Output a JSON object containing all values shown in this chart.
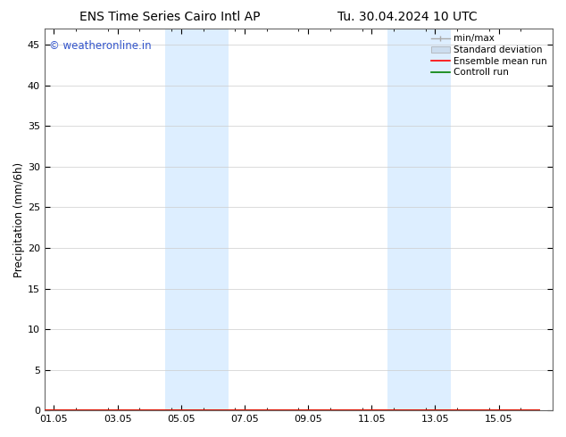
{
  "title_left": "ENS Time Series Cairo Intl AP",
  "title_right": "Tu. 30.04.2024 10 UTC",
  "ylabel": "Precipitation (mm/6h)",
  "ylim": [
    0,
    47
  ],
  "yticks": [
    0,
    5,
    10,
    15,
    20,
    25,
    30,
    35,
    40,
    45
  ],
  "xtick_labels": [
    "01.05",
    "03.05",
    "05.05",
    "07.05",
    "09.05",
    "11.05",
    "13.05",
    "15.05"
  ],
  "xtick_positions": [
    0,
    2,
    4,
    6,
    8,
    10,
    12,
    14
  ],
  "xmin": -0.3,
  "xmax": 15.3,
  "shaded_regions": [
    {
      "xstart": 3.5,
      "xend": 5.5
    },
    {
      "xstart": 10.5,
      "xend": 12.5
    }
  ],
  "shaded_color": "#ddeeff",
  "bg_color": "#ffffff",
  "plot_bg_color": "#ffffff",
  "watermark_text": "© weatheronline.in",
  "watermark_color": "#3355cc",
  "legend_items": [
    {
      "label": "min/max",
      "color": "#aaaaaa",
      "lw": 1.0
    },
    {
      "label": "Standard deviation",
      "color": "#ccddef",
      "lw": 5
    },
    {
      "label": "Ensemble mean run",
      "color": "#ff0000",
      "lw": 1.2
    },
    {
      "label": "Controll run",
      "color": "#008000",
      "lw": 1.2
    }
  ],
  "grid_color": "#cccccc",
  "tick_color": "#000000",
  "font_size_title": 10,
  "font_size_tick": 8,
  "font_size_legend": 7.5,
  "font_size_ylabel": 8.5,
  "font_size_watermark": 8.5
}
